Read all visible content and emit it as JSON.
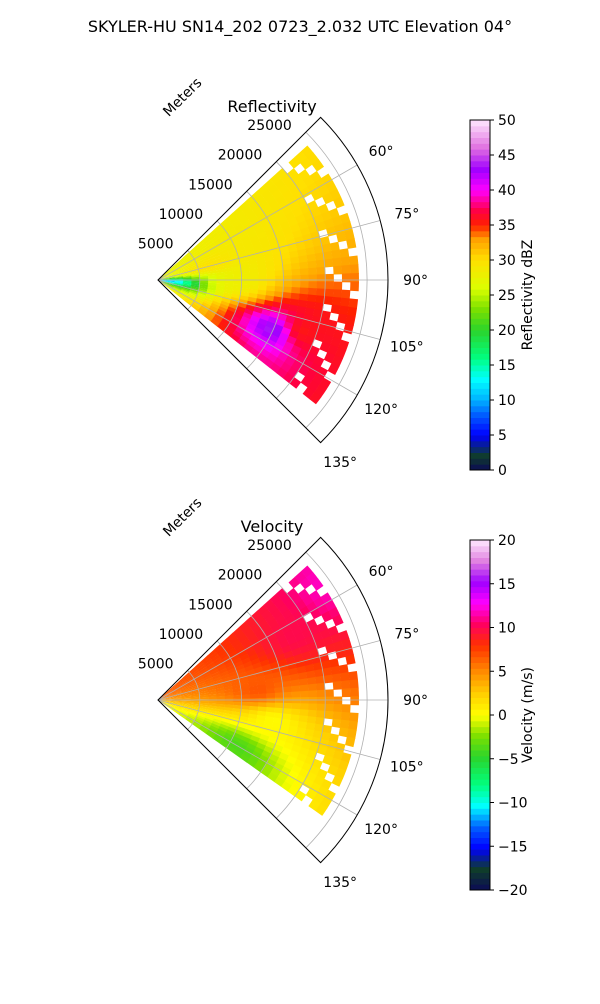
{
  "suptitle": "SKYLER-HU  SN14_202  0723_2.032 UTC Elevation 04°",
  "colors": {
    "grid": "#b0b0b0",
    "axis": "#000000",
    "background": "#ffffff"
  },
  "chart_data": [
    {
      "type": "heatmap",
      "projection": "polar-sector",
      "title": "Reflectivity",
      "range_label": "Meters",
      "range_ticks": [
        5000,
        10000,
        15000,
        20000,
        25000
      ],
      "range_tick_labels": [
        "5000",
        "10000",
        "15000",
        "20000",
        "25000"
      ],
      "range_max": 27500,
      "azimuth_range_deg": [
        45,
        135
      ],
      "azimuth_ticks": [
        60,
        75,
        90,
        105,
        120,
        135
      ],
      "azimuth_tick_labels": [
        "60°",
        "75°",
        "90°",
        "105°",
        "120°",
        "135°"
      ],
      "grid": true,
      "colorbar": {
        "label": "Reflectivity dBZ",
        "vmin": 0,
        "vmax": 50,
        "ticks": [
          0,
          5,
          10,
          15,
          20,
          25,
          30,
          35,
          40,
          45,
          50
        ],
        "tick_labels": [
          "0",
          "5",
          "10",
          "15",
          "20",
          "25",
          "30",
          "35",
          "40",
          "45",
          "50"
        ],
        "colormap": "NWSRef"
      },
      "data_extent": {
        "azimuth_deg": [
          48,
          128
        ],
        "range_m": [
          0,
          24000
        ]
      },
      "features": [
        {
          "az": 93,
          "r": 9500,
          "value": 28
        },
        {
          "az": 113,
          "r": 15000,
          "value": 45
        },
        {
          "az": 110,
          "r": 18000,
          "value": 35
        },
        {
          "az": 75,
          "r": 6000,
          "value": 30
        },
        {
          "az": 95,
          "r": 1000,
          "value": 10
        }
      ]
    },
    {
      "type": "heatmap",
      "projection": "polar-sector",
      "title": "Velocity",
      "range_label": "Meters",
      "range_ticks": [
        5000,
        10000,
        15000,
        20000,
        25000
      ],
      "range_tick_labels": [
        "5000",
        "10000",
        "15000",
        "20000",
        "25000"
      ],
      "range_max": 27500,
      "azimuth_range_deg": [
        45,
        135
      ],
      "azimuth_ticks": [
        60,
        75,
        90,
        105,
        120,
        135
      ],
      "azimuth_tick_labels": [
        "60°",
        "75°",
        "90°",
        "105°",
        "120°",
        "135°"
      ],
      "grid": true,
      "colorbar": {
        "label": "Velocity (m/s)",
        "vmin": -20,
        "vmax": 20,
        "ticks": [
          -20,
          -15,
          -10,
          -5,
          0,
          5,
          10,
          15,
          20
        ],
        "tick_labels": [
          "−20",
          "−15",
          "−10",
          "−5",
          "0",
          "5",
          "10",
          "15",
          "20"
        ],
        "colormap": "NWSVel"
      },
      "data_extent": {
        "azimuth_deg": [
          48,
          125
        ],
        "range_m": [
          0,
          24000
        ]
      },
      "features": [
        {
          "az": 65,
          "r": 18000,
          "value": 10
        },
        {
          "az": 55,
          "r": 24000,
          "value": 12
        },
        {
          "az": 85,
          "r": 12000,
          "value": 7
        },
        {
          "az": 100,
          "r": 14000,
          "value": 0
        },
        {
          "az": 120,
          "r": 11000,
          "value": -4
        }
      ]
    }
  ]
}
